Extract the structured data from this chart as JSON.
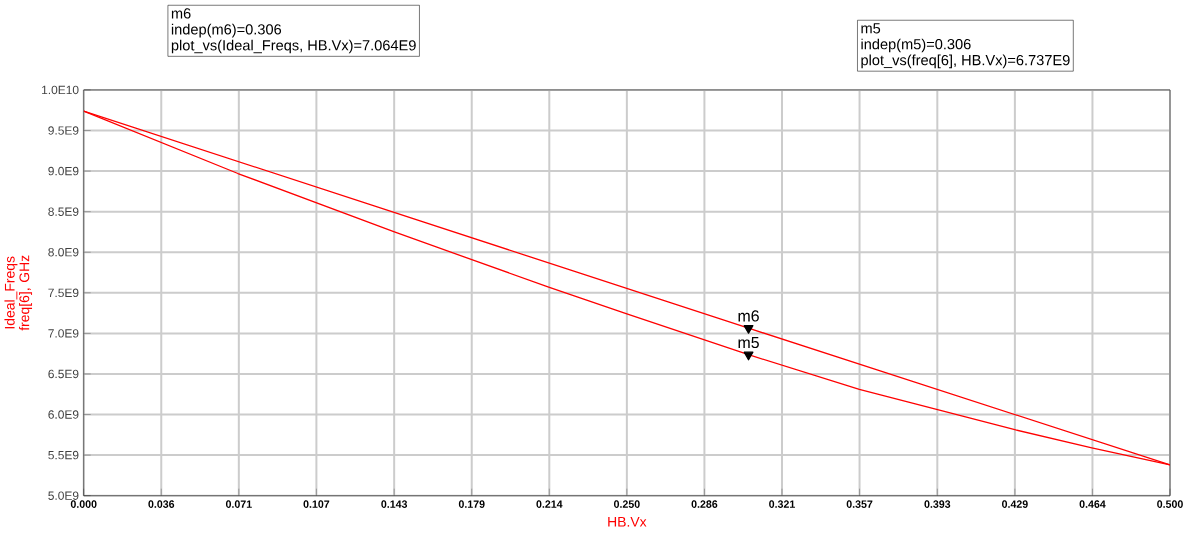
{
  "chart_data": {
    "type": "line",
    "xlabel": "HB.Vx",
    "ylabel": "Ideal_Freqs freq[6], GHz",
    "series": [
      {
        "color": "#ff0000",
        "x": [
          0,
          0.306,
          0.5
        ],
        "values": [
          9740000000.0,
          7064000000.0,
          5380000000.0
        ]
      },
      {
        "type": "scatter",
        "color": "#000000",
        "marker": "triangle",
        "x": [
          0.306,
          0.306
        ],
        "values": [
          7064000000.0,
          6737000000.0
        ]
      },
      {
        "color": "#ff0000",
        "x": [
          0,
          0.071,
          0.143,
          0.214,
          0.25,
          0.306,
          0.357,
          0.393,
          0.429,
          0.464,
          0.5
        ],
        "values": [
          9740000000.0,
          8970000000.0,
          8250000000.0,
          7570000000.0,
          7240000000.0,
          6737000000.0,
          6310000000.0,
          6060000000.0,
          5810000000.0,
          5590000000.0,
          5380000000.0
        ]
      }
    ],
    "line_style": "solid",
    "grid": true,
    "xlim": [
      0,
      0.5
    ],
    "ylim": [
      5000000000.0,
      10000000000.0
    ],
    "xticks": [
      {
        "value": 0,
        "label": "0.000"
      },
      {
        "value": 0.0357,
        "label": "0.036"
      },
      {
        "value": 0.0714,
        "label": "0.071"
      },
      {
        "value": 0.1071,
        "label": "0.107"
      },
      {
        "value": 0.1429,
        "label": "0.143"
      },
      {
        "value": 0.1786,
        "label": "0.179"
      },
      {
        "value": 0.2143,
        "label": "0.214"
      },
      {
        "value": 0.25,
        "label": "0.250"
      },
      {
        "value": 0.2857,
        "label": "0.286"
      },
      {
        "value": 0.3214,
        "label": "0.321"
      },
      {
        "value": 0.3571,
        "label": "0.357"
      },
      {
        "value": 0.3929,
        "label": "0.393"
      },
      {
        "value": 0.4286,
        "label": "0.429"
      },
      {
        "value": 0.4643,
        "label": "0.464"
      },
      {
        "value": 0.5,
        "label": "0.500"
      }
    ],
    "yticks": [
      {
        "value": 5000000000.0,
        "label": "5.0E9"
      },
      {
        "value": 5500000000.0,
        "label": "5.5E9"
      },
      {
        "value": 6000000000.0,
        "label": "6.0E9"
      },
      {
        "value": 6500000000.0,
        "label": "6.5E9"
      },
      {
        "value": 7000000000.0,
        "label": "7.0E9"
      },
      {
        "value": 7500000000.0,
        "label": "7.5E9"
      },
      {
        "value": 8000000000.0,
        "label": "8.0E9"
      },
      {
        "value": 8500000000.0,
        "label": "8.5E9"
      },
      {
        "value": 9000000000.0,
        "label": "9.0E9"
      },
      {
        "value": 9500000000.0,
        "label": "9.5E9"
      },
      {
        "value": 10000000000.0,
        "label": "1.0E10"
      }
    ],
    "annotations": [
      "m6",
      "indep(m6)=0.306",
      "plot_vs(Ideal_Freqs, HB.Vx)=7.064E9",
      "m5",
      "indep(m5)=0.306",
      "plot_vs(freq[6], HB.Vx)=6.737E9",
      {
        "text": "m6",
        "x": 0.306,
        "y": 7064000000.0
      },
      {
        "text": "m5",
        "x": 0.306,
        "y": 6737000000.0
      }
    ]
  }
}
